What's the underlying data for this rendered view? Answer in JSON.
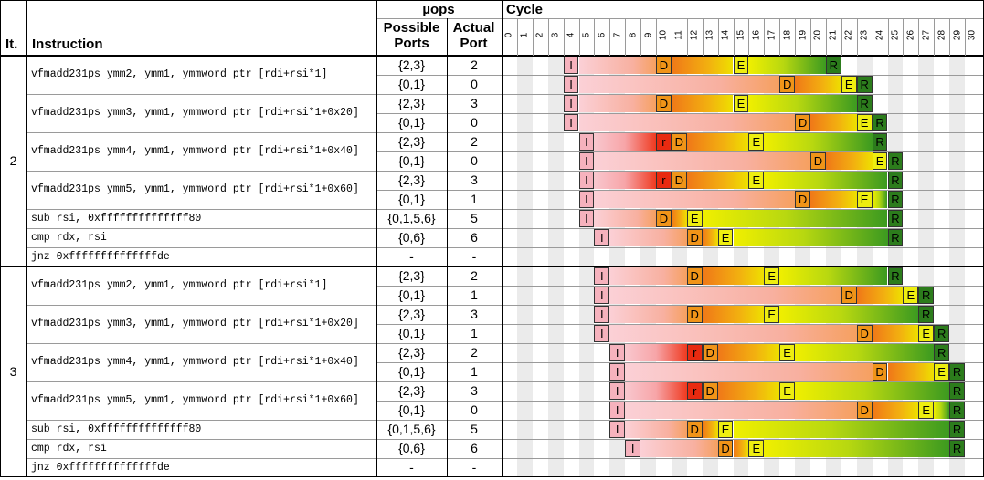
{
  "header": {
    "iter_label": "It.",
    "instr_label": "Instruction",
    "uops_label": "µops",
    "possible_ports_label": "Possible Ports",
    "actual_port_label": "Actual Port",
    "cycle_label": "Cycle"
  },
  "cycles": [
    "0",
    "1",
    "2",
    "3",
    "4",
    "5",
    "6",
    "7",
    "8",
    "9",
    "10",
    "11",
    "12",
    "13",
    "14",
    "15",
    "16",
    "17",
    "18",
    "19",
    "20",
    "21",
    "22",
    "23",
    "24",
    "25",
    "26",
    "27",
    "28",
    "29",
    "30"
  ],
  "legend_colors": {
    "I": "#f4a0b0",
    "r": "#e02010",
    "D": "#f09010",
    "E": "#e8e800",
    "R": "#2a7a1a"
  },
  "iterations": [
    {
      "label": "2",
      "instructions": [
        {
          "text": "vfmadd231ps ymm2, ymm1, ymmword ptr [rdi+rsi*1]",
          "uops": [
            {
              "possible": "{2,3}",
              "actual": "2",
              "events": {
                "I": 4,
                "D": 10,
                "E": 15,
                "R": 21
              }
            },
            {
              "possible": "{0,1}",
              "actual": "0",
              "events": {
                "I": 4,
                "D": 18,
                "E": 22,
                "R": 23
              }
            }
          ]
        },
        {
          "text": "vfmadd231ps ymm3, ymm1, ymmword ptr [rdi+rsi*1+0x20]",
          "uops": [
            {
              "possible": "{2,3}",
              "actual": "3",
              "events": {
                "I": 4,
                "D": 10,
                "E": 15,
                "R": 23
              }
            },
            {
              "possible": "{0,1}",
              "actual": "0",
              "events": {
                "I": 4,
                "D": 19,
                "E": 23,
                "R": 24
              }
            }
          ]
        },
        {
          "text": "vfmadd231ps ymm4, ymm1, ymmword ptr [rdi+rsi*1+0x40]",
          "uops": [
            {
              "possible": "{2,3}",
              "actual": "2",
              "events": {
                "I": 5,
                "r": 10,
                "D": 11,
                "E": 16,
                "R": 24
              }
            },
            {
              "possible": "{0,1}",
              "actual": "0",
              "events": {
                "I": 5,
                "D": 20,
                "E": 24,
                "R": 25
              }
            }
          ]
        },
        {
          "text": "vfmadd231ps ymm5, ymm1, ymmword ptr [rdi+rsi*1+0x60]",
          "uops": [
            {
              "possible": "{2,3}",
              "actual": "3",
              "events": {
                "I": 5,
                "r": 10,
                "D": 11,
                "E": 16,
                "R": 25
              }
            },
            {
              "possible": "{0,1}",
              "actual": "1",
              "events": {
                "I": 5,
                "D": 19,
                "E": 23,
                "R": 25
              }
            }
          ]
        },
        {
          "text": "sub rsi, 0xffffffffffffff80",
          "uops": [
            {
              "possible": "{0,1,5,6}",
              "actual": "5",
              "events": {
                "I": 5,
                "D": 10,
                "E": 12,
                "R": 25
              }
            }
          ]
        },
        {
          "text": "cmp rdx, rsi",
          "uops": [
            {
              "possible": "{0,6}",
              "actual": "6",
              "events": {
                "I": 6,
                "D": 12,
                "E": 14,
                "R": 25
              }
            }
          ]
        },
        {
          "text": "jnz 0xffffffffffffffde",
          "uops": [
            {
              "possible": "-",
              "actual": "-",
              "events": {}
            }
          ]
        }
      ]
    },
    {
      "label": "3",
      "instructions": [
        {
          "text": "vfmadd231ps ymm2, ymm1, ymmword ptr [rdi+rsi*1]",
          "uops": [
            {
              "possible": "{2,3}",
              "actual": "2",
              "events": {
                "I": 6,
                "D": 12,
                "E": 17,
                "R": 25
              }
            },
            {
              "possible": "{0,1}",
              "actual": "1",
              "events": {
                "I": 6,
                "D": 22,
                "E": 26,
                "R": 27
              }
            }
          ]
        },
        {
          "text": "vfmadd231ps ymm3, ymm1, ymmword ptr [rdi+rsi*1+0x20]",
          "uops": [
            {
              "possible": "{2,3}",
              "actual": "3",
              "events": {
                "I": 6,
                "D": 12,
                "E": 17,
                "R": 27
              }
            },
            {
              "possible": "{0,1}",
              "actual": "1",
              "events": {
                "I": 6,
                "D": 23,
                "E": 27,
                "R": 28
              }
            }
          ]
        },
        {
          "text": "vfmadd231ps ymm4, ymm1, ymmword ptr [rdi+rsi*1+0x40]",
          "uops": [
            {
              "possible": "{2,3}",
              "actual": "2",
              "events": {
                "I": 7,
                "r": 12,
                "D": 13,
                "E": 18,
                "R": 28
              }
            },
            {
              "possible": "{0,1}",
              "actual": "1",
              "events": {
                "I": 7,
                "D": 24,
                "E": 28,
                "R": 29
              }
            }
          ]
        },
        {
          "text": "vfmadd231ps ymm5, ymm1, ymmword ptr [rdi+rsi*1+0x60]",
          "uops": [
            {
              "possible": "{2,3}",
              "actual": "3",
              "events": {
                "I": 7,
                "r": 12,
                "D": 13,
                "E": 18,
                "R": 29
              }
            },
            {
              "possible": "{0,1}",
              "actual": "0",
              "events": {
                "I": 7,
                "D": 23,
                "E": 27,
                "R": 29
              }
            }
          ]
        },
        {
          "text": "sub rsi, 0xffffffffffffff80",
          "uops": [
            {
              "possible": "{0,1,5,6}",
              "actual": "5",
              "events": {
                "I": 7,
                "D": 12,
                "E": 14,
                "R": 29
              }
            }
          ]
        },
        {
          "text": "cmp rdx, rsi",
          "uops": [
            {
              "possible": "{0,6}",
              "actual": "6",
              "events": {
                "I": 8,
                "D": 14,
                "E": 16,
                "R": 29
              }
            }
          ]
        },
        {
          "text": "jnz 0xffffffffffffffde",
          "uops": [
            {
              "possible": "-",
              "actual": "-",
              "events": {}
            }
          ]
        }
      ]
    }
  ]
}
